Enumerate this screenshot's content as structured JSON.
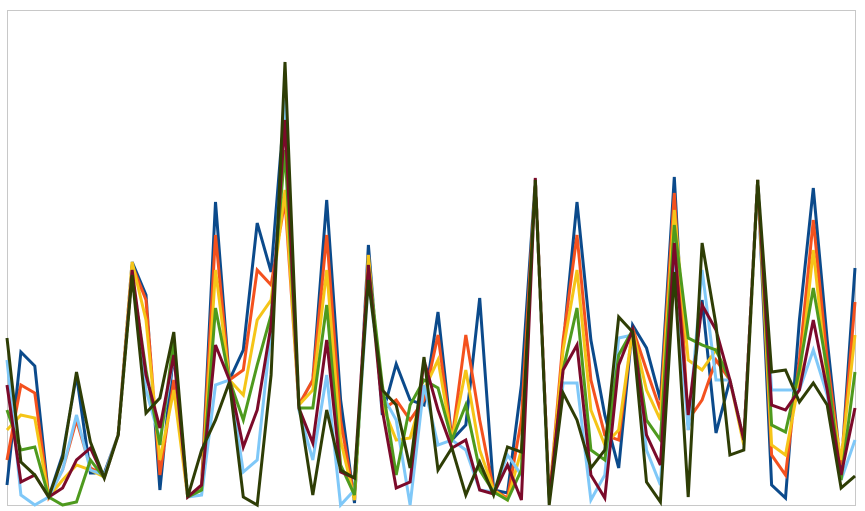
{
  "chart_data": {
    "type": "line",
    "categories": [
      null,
      null,
      null,
      null,
      null,
      null,
      null,
      null,
      null,
      null,
      null,
      null,
      null,
      null,
      null,
      null,
      null,
      null,
      null,
      null,
      null,
      null,
      null,
      null,
      null,
      null,
      null,
      null,
      null,
      null,
      null,
      null,
      null,
      null,
      null,
      null,
      null,
      null,
      null,
      null,
      null,
      null,
      null,
      null,
      null,
      null,
      null,
      null,
      null,
      null,
      null,
      null,
      null,
      null,
      null,
      null,
      null,
      null,
      null,
      null,
      null,
      null
    ],
    "ylim": [
      0,
      495
    ],
    "series": [
      {
        "color": "#0b4a8b",
        "values": [
          20,
          153,
          139,
          8,
          50,
          130,
          32,
          32,
          70,
          243,
          210,
          15,
          155,
          8,
          20,
          303,
          125,
          155,
          282,
          233,
          405,
          100,
          125,
          305,
          105,
          2,
          260,
          90,
          141,
          105,
          100,
          193,
          65,
          80,
          207,
          15,
          12,
          120,
          325,
          2,
          160,
          303,
          165,
          90,
          37,
          180,
          157,
          105,
          328,
          75,
          205,
          72,
          125,
          65,
          325,
          20,
          7,
          185,
          317,
          165,
          35,
          237
        ]
      },
      {
        "color": "#f4511e",
        "values": [
          45,
          120,
          112,
          8,
          35,
          85,
          37,
          30,
          70,
          240,
          205,
          30,
          125,
          8,
          20,
          270,
          125,
          135,
          235,
          220,
          305,
          100,
          125,
          270,
          85,
          5,
          250,
          95,
          105,
          85,
          105,
          170,
          65,
          170,
          85,
          15,
          7,
          85,
          325,
          5,
          165,
          270,
          125,
          70,
          65,
          177,
          135,
          95,
          312,
          85,
          105,
          145,
          125,
          65,
          325,
          50,
          30,
          145,
          285,
          145,
          40,
          203
        ]
      },
      {
        "color": "#f5c518",
        "values": [
          75,
          90,
          87,
          8,
          25,
          40,
          35,
          28,
          70,
          243,
          185,
          45,
          115,
          8,
          15,
          235,
          125,
          110,
          185,
          205,
          315,
          100,
          115,
          235,
          65,
          5,
          250,
          100,
          65,
          67,
          115,
          145,
          65,
          135,
          55,
          15,
          5,
          55,
          325,
          5,
          155,
          235,
          95,
          60,
          75,
          175,
          115,
          85,
          295,
          145,
          135,
          155,
          125,
          60,
          325,
          60,
          50,
          125,
          255,
          125,
          45,
          170
        ]
      },
      {
        "color": "#7fc8f8",
        "values": [
          145,
          10,
          0,
          8,
          35,
          90,
          35,
          30,
          70,
          235,
          115,
          65,
          150,
          8,
          10,
          120,
          125,
          33,
          45,
          175,
          405,
          95,
          45,
          130,
          0,
          15,
          225,
          110,
          85,
          0,
          120,
          60,
          65,
          55,
          15,
          13,
          50,
          30,
          325,
          2,
          122,
          122,
          5,
          30,
          167,
          170,
          55,
          20,
          247,
          75,
          235,
          125,
          125,
          65,
          325,
          115,
          115,
          115,
          155,
          110,
          25,
          65
        ]
      },
      {
        "color": "#4e9a1e",
        "values": [
          95,
          55,
          58,
          8,
          0,
          3,
          45,
          27,
          70,
          230,
          135,
          60,
          165,
          8,
          15,
          197,
          125,
          85,
          140,
          190,
          355,
          97,
          97,
          200,
          40,
          10,
          240,
          120,
          30,
          100,
          125,
          117,
          65,
          100,
          35,
          13,
          5,
          35,
          325,
          5,
          135,
          197,
          55,
          45,
          150,
          175,
          85,
          65,
          280,
          167,
          160,
          155,
          125,
          65,
          325,
          80,
          73,
          135,
          217,
          135,
          25,
          133
        ]
      },
      {
        "color": "#7b0a2a",
        "values": [
          120,
          23,
          30,
          8,
          17,
          45,
          57,
          27,
          70,
          235,
          130,
          77,
          150,
          8,
          20,
          160,
          125,
          58,
          95,
          180,
          385,
          97,
          62,
          165,
          33,
          27,
          240,
          95,
          17,
          23,
          145,
          95,
          57,
          65,
          15,
          11,
          40,
          5,
          327,
          5,
          135,
          160,
          30,
          7,
          140,
          175,
          70,
          40,
          262,
          90,
          200,
          175,
          125,
          65,
          325,
          100,
          95,
          115,
          185,
          115,
          30,
          97
        ]
      },
      {
        "color": "#2e3d05",
        "values": [
          167,
          43,
          30,
          8,
          47,
          133,
          63,
          27,
          70,
          230,
          92,
          107,
          173,
          8,
          55,
          85,
          123,
          8,
          0,
          130,
          443,
          100,
          10,
          95,
          35,
          27,
          225,
          115,
          100,
          37,
          148,
          35,
          57,
          10,
          43,
          10,
          58,
          53,
          325,
          0,
          112,
          85,
          37,
          55,
          188,
          173,
          23,
          3,
          233,
          8,
          262,
          180,
          50,
          55,
          325,
          133,
          135,
          103,
          122,
          100,
          17,
          29
        ]
      }
    ]
  }
}
